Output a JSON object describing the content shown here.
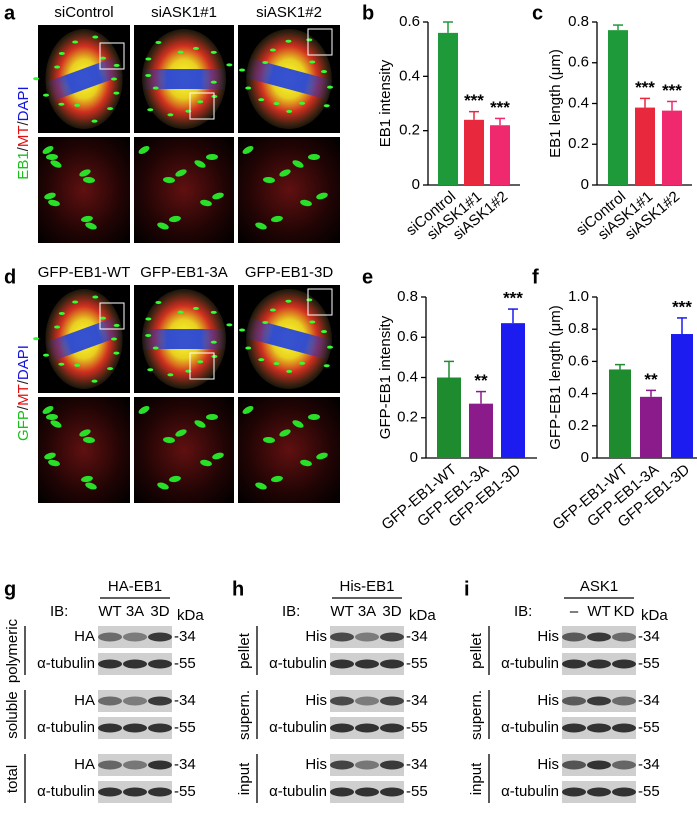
{
  "panel_labels": [
    "a",
    "b",
    "c",
    "d",
    "e",
    "f",
    "g",
    "h",
    "i"
  ],
  "panel_a": {
    "columns": [
      "siControl",
      "siASK1#1",
      "siASK1#2"
    ],
    "side_label": [
      "EB1",
      "/",
      "MT",
      "/",
      "DAPI"
    ]
  },
  "panel_d": {
    "columns": [
      "GFP-EB1-WT",
      "GFP-EB1-3A",
      "GFP-EB1-3D"
    ],
    "side_label": [
      "GFP",
      "/",
      "MT",
      "/",
      "DAPI"
    ]
  },
  "chart_data": [
    {
      "type": "bar",
      "ylabel": "EB1 intensity",
      "categories": [
        "siControl",
        "siASK1#1",
        "siASK1#2"
      ],
      "values": [
        0.56,
        0.24,
        0.22
      ],
      "errors": [
        0.04,
        0.03,
        0.025
      ],
      "significance": [
        null,
        "***",
        "***"
      ],
      "colors": [
        "#1f9a3a",
        "#e8283c",
        "#f0286e"
      ],
      "ylim": [
        0,
        0.6
      ],
      "yticks": [
        0,
        0.2,
        0.4,
        0.6
      ]
    },
    {
      "type": "bar",
      "ylabel": "EB1 length (μm)",
      "categories": [
        "siControl",
        "siASK1#1",
        "siASK1#2"
      ],
      "values": [
        0.76,
        0.38,
        0.365
      ],
      "errors": [
        0.025,
        0.045,
        0.045
      ],
      "significance": [
        null,
        "***",
        "***"
      ],
      "colors": [
        "#1f9a3a",
        "#e8283c",
        "#f0286e"
      ],
      "ylim": [
        0,
        0.8
      ],
      "yticks": [
        0,
        0.2,
        0.4,
        0.6,
        0.8
      ]
    },
    {
      "type": "bar",
      "ylabel": "GFP-EB1 intensity",
      "categories": [
        "GFP-EB1-WT",
        "GFP-EB1-3A",
        "GFP-EB1-3D"
      ],
      "values": [
        0.4,
        0.27,
        0.67
      ],
      "errors": [
        0.08,
        0.06,
        0.07
      ],
      "significance": [
        null,
        "**",
        "***"
      ],
      "colors": [
        "#1e8c2e",
        "#8b1a8b",
        "#1c1cf0"
      ],
      "ylim": [
        0,
        0.8
      ],
      "yticks": [
        0,
        0.2,
        0.4,
        0.6,
        0.8
      ]
    },
    {
      "type": "bar",
      "ylabel": "GFP-EB1 length (μm)",
      "categories": [
        "GFP-EB1-WT",
        "GFP-EB1-3A",
        "GFP-EB1-3D"
      ],
      "values": [
        0.55,
        0.38,
        0.77
      ],
      "errors": [
        0.03,
        0.04,
        0.1
      ],
      "significance": [
        null,
        "**",
        "***"
      ],
      "colors": [
        "#1e8c2e",
        "#8b1a8b",
        "#1c1cf0"
      ],
      "ylim": [
        0,
        1
      ],
      "yticks": [
        0,
        0.2,
        0.4,
        0.6,
        0.8,
        {
          "value": 1,
          "label": "1.0"
        }
      ]
    }
  ],
  "blots": [
    {
      "header": "HA-EB1",
      "ib": "IB:",
      "lanes": [
        "WT",
        "3A",
        "3D"
      ],
      "kda": "kDa",
      "groups": [
        {
          "label": "polymeric",
          "rows": [
            {
              "antibody": "HA",
              "marker": "-34"
            },
            {
              "antibody": "α-tubulin",
              "marker": "-55"
            }
          ]
        },
        {
          "label": "soluble",
          "rows": [
            {
              "antibody": "HA",
              "marker": "-34"
            },
            {
              "antibody": "α-tubulin",
              "marker": "-55"
            }
          ]
        },
        {
          "label": "total",
          "rows": [
            {
              "antibody": "HA",
              "marker": "-34"
            },
            {
              "antibody": "α-tubulin",
              "marker": "-55"
            }
          ]
        }
      ]
    },
    {
      "header": "His-EB1",
      "ib": "IB:",
      "lanes": [
        "WT",
        "3A",
        "3D"
      ],
      "kda": "kDa",
      "groups": [
        {
          "label": "pellet",
          "rows": [
            {
              "antibody": "His",
              "marker": "-34"
            },
            {
              "antibody": "α-tubulin",
              "marker": "-55"
            }
          ]
        },
        {
          "label": "supern.",
          "rows": [
            {
              "antibody": "His",
              "marker": "-34"
            },
            {
              "antibody": "α-tubulin",
              "marker": "-55"
            }
          ]
        },
        {
          "label": "input",
          "rows": [
            {
              "antibody": "His",
              "marker": "-34"
            },
            {
              "antibody": "α-tubulin",
              "marker": "-55"
            }
          ]
        }
      ]
    },
    {
      "header": "ASK1",
      "ib": "IB:",
      "lanes": [
        "–",
        "WT",
        "KD"
      ],
      "kda": "kDa",
      "groups": [
        {
          "label": "pellet",
          "rows": [
            {
              "antibody": "His",
              "marker": "-34"
            },
            {
              "antibody": "α-tubulin",
              "marker": "-55"
            }
          ]
        },
        {
          "label": "supern.",
          "rows": [
            {
              "antibody": "His",
              "marker": "-34"
            },
            {
              "antibody": "α-tubulin",
              "marker": "-55"
            }
          ]
        },
        {
          "label": "input",
          "rows": [
            {
              "antibody": "His",
              "marker": "-34"
            },
            {
              "antibody": "α-tubulin",
              "marker": "-55"
            }
          ]
        }
      ]
    }
  ]
}
